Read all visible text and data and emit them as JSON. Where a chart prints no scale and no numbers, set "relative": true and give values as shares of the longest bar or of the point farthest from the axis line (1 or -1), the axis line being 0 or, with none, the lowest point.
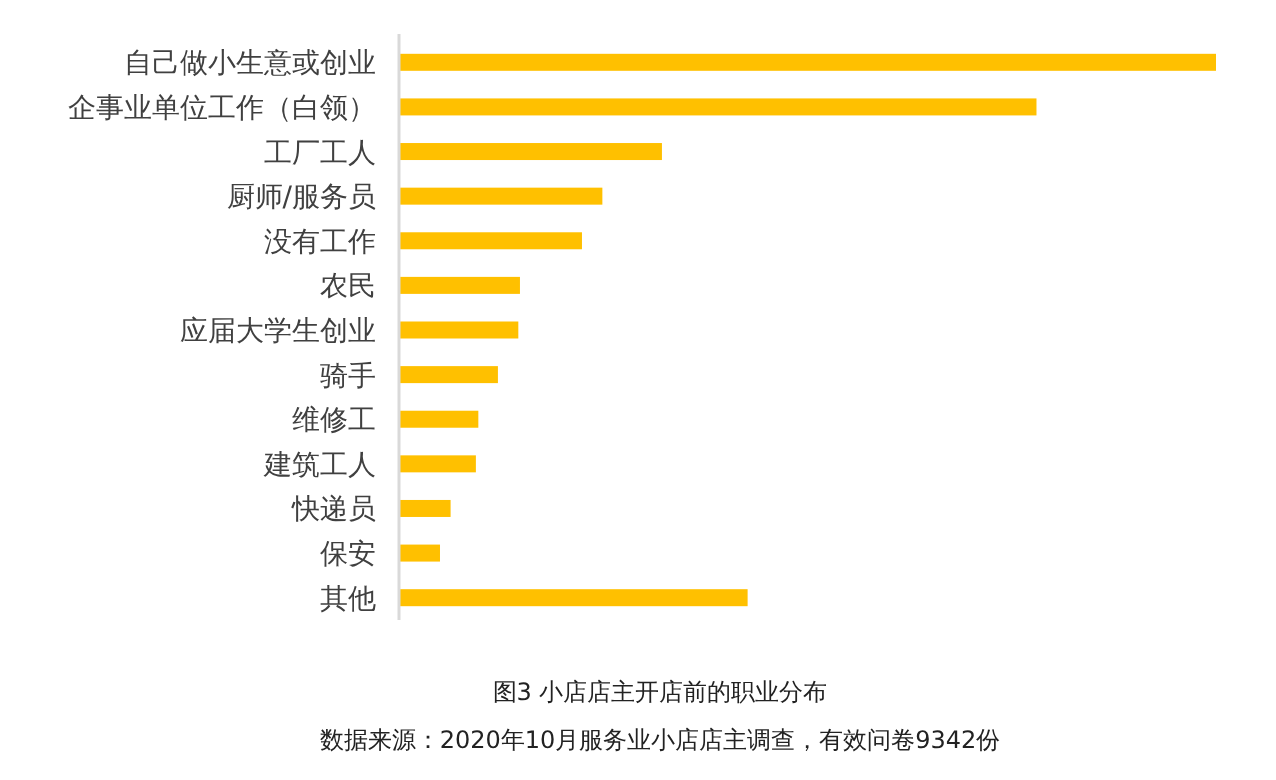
{
  "chart_data": {
    "type": "bar",
    "orientation": "horizontal",
    "relative": true,
    "color": "#ffc000",
    "categories": [
      "自己做小生意或创业",
      "企事业单位工作（白领）",
      "工厂工人",
      "厨师/服务员",
      "没有工作",
      "农民",
      "应届大学生创业",
      "骑手",
      "维修工",
      "建筑工人",
      "快递员",
      "保安",
      "其他"
    ],
    "values": [
      1,
      0.78,
      0.321,
      0.248,
      0.223,
      0.147,
      0.145,
      0.12,
      0.096,
      0.093,
      0.062,
      0.049,
      0.426
    ],
    "title": "图3  小店店主开店前的职业分布",
    "annotations": [
      "数据来源：2020年10月服务业小店店主调查，有效问卷9342份"
    ]
  }
}
